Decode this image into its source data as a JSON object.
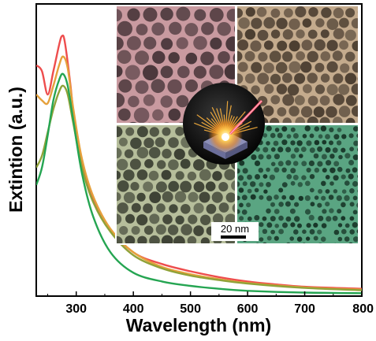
{
  "chart_data": {
    "type": "line",
    "xlabel": "Wavelength (nm)",
    "ylabel": "Extintion (a.u.)",
    "xlim": [
      230,
      800
    ],
    "ylim": [
      0,
      1
    ],
    "x_ticks": [
      300,
      400,
      500,
      600,
      700,
      800
    ],
    "y_ticks_shown": false,
    "grid": false,
    "legend": "none",
    "series": [
      {
        "color": "#ee4d4d",
        "points": [
          [
            230,
            0.79
          ],
          [
            240,
            0.77
          ],
          [
            250,
            0.69
          ],
          [
            260,
            0.77
          ],
          [
            270,
            0.86
          ],
          [
            275,
            0.89
          ],
          [
            280,
            0.87
          ],
          [
            290,
            0.72
          ],
          [
            300,
            0.54
          ],
          [
            320,
            0.38
          ],
          [
            350,
            0.25
          ],
          [
            400,
            0.15
          ],
          [
            450,
            0.11
          ],
          [
            500,
            0.085
          ],
          [
            550,
            0.065
          ],
          [
            600,
            0.05
          ],
          [
            650,
            0.04
          ],
          [
            700,
            0.032
          ],
          [
            800,
            0.025
          ]
        ]
      },
      {
        "color": "#e5a13c",
        "points": [
          [
            230,
            0.69
          ],
          [
            240,
            0.67
          ],
          [
            250,
            0.66
          ],
          [
            260,
            0.72
          ],
          [
            270,
            0.79
          ],
          [
            277,
            0.82
          ],
          [
            285,
            0.78
          ],
          [
            295,
            0.64
          ],
          [
            310,
            0.47
          ],
          [
            330,
            0.34
          ],
          [
            360,
            0.23
          ],
          [
            400,
            0.15
          ],
          [
            450,
            0.1
          ],
          [
            500,
            0.075
          ],
          [
            550,
            0.058
          ],
          [
            600,
            0.045
          ],
          [
            700,
            0.03
          ],
          [
            800,
            0.022
          ]
        ]
      },
      {
        "color": "#90a238",
        "points": [
          [
            230,
            0.44
          ],
          [
            240,
            0.48
          ],
          [
            250,
            0.56
          ],
          [
            260,
            0.64
          ],
          [
            270,
            0.7
          ],
          [
            277,
            0.72
          ],
          [
            285,
            0.69
          ],
          [
            295,
            0.59
          ],
          [
            310,
            0.44
          ],
          [
            330,
            0.32
          ],
          [
            360,
            0.22
          ],
          [
            400,
            0.14
          ],
          [
            450,
            0.095
          ],
          [
            500,
            0.07
          ],
          [
            550,
            0.055
          ],
          [
            600,
            0.043
          ],
          [
            700,
            0.028
          ],
          [
            800,
            0.02
          ]
        ]
      },
      {
        "color": "#25a552",
        "points": [
          [
            230,
            0.38
          ],
          [
            240,
            0.44
          ],
          [
            250,
            0.55
          ],
          [
            260,
            0.67
          ],
          [
            270,
            0.74
          ],
          [
            277,
            0.76
          ],
          [
            285,
            0.72
          ],
          [
            295,
            0.6
          ],
          [
            310,
            0.42
          ],
          [
            330,
            0.27
          ],
          [
            360,
            0.15
          ],
          [
            400,
            0.08
          ],
          [
            450,
            0.05
          ],
          [
            500,
            0.035
          ],
          [
            550,
            0.025
          ],
          [
            600,
            0.018
          ],
          [
            700,
            0.012
          ],
          [
            800,
            0.01
          ]
        ]
      }
    ]
  },
  "inset": {
    "scale_bar_label": "20 nm",
    "panel_tints": [
      "#c99aa0",
      "#c4ab8d",
      "#b6be9b",
      "#5aa582"
    ],
    "center_icon": "laser-ablation-illustration-icon"
  }
}
